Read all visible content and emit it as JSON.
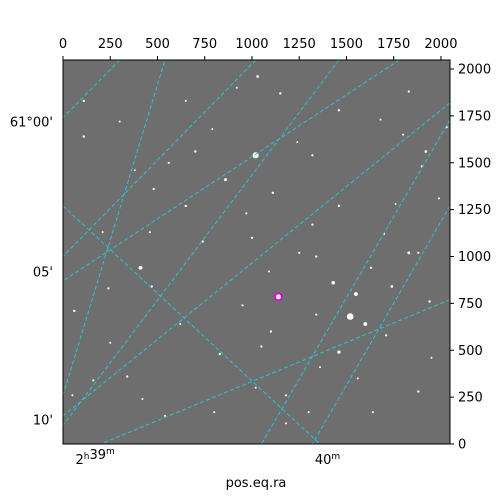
{
  "chart_data": {
    "type": "scatter",
    "title": "",
    "xlabel": "pos.eq.ra",
    "ylabel": "",
    "pixel_axes": {
      "x_range": [
        0,
        2048
      ],
      "y_range": [
        0,
        2048
      ],
      "x_ticks": [
        0,
        250,
        500,
        750,
        1000,
        1250,
        1500,
        1750,
        2000
      ],
      "y_ticks": [
        0,
        250,
        500,
        750,
        1000,
        1250,
        1500,
        1750,
        2000
      ]
    },
    "world_ticks": {
      "ra": [
        {
          "label_base": "2",
          "label_sup1": "h",
          "label_mid": "39",
          "label_sup2": "m",
          "x": 170
        },
        {
          "label_base": "",
          "label_sup1": "",
          "label_mid": "40",
          "label_sup2": "m",
          "x": 1400
        }
      ],
      "dec": [
        {
          "label": "61°00'",
          "y": 1720
        },
        {
          "label": "05'",
          "y": 920
        },
        {
          "label": "10'",
          "y": 130
        }
      ]
    },
    "grid": {
      "on": true,
      "color": "#27c5d5",
      "lines": [
        [
          [
            300,
            2048
          ],
          [
            0,
            1740
          ]
        ],
        [
          [
            1020,
            2048
          ],
          [
            0,
            1000
          ]
        ],
        [
          [
            1460,
            2048
          ],
          [
            0,
            100
          ]
        ],
        [
          [
            1780,
            2048
          ],
          [
            0,
            870
          ]
        ],
        [
          [
            2048,
            1820
          ],
          [
            0,
            150
          ]
        ],
        [
          [
            2048,
            1730
          ],
          [
            1050,
            0
          ]
        ],
        [
          [
            2048,
            770
          ],
          [
            200,
            0
          ]
        ],
        [
          [
            2048,
            1270
          ],
          [
            1320,
            0
          ]
        ],
        [
          [
            0,
            1270
          ],
          [
            1360,
            0
          ]
        ],
        [
          [
            0,
            260
          ],
          [
            540,
            2048
          ]
        ]
      ]
    },
    "image": {
      "background": "#6e6e6e",
      "star_color": "#ffffff"
    },
    "marker": {
      "x": 1140,
      "y": 785,
      "color": "#e000e0"
    },
    "stars": [
      [
        1020,
        1540,
        5.5
      ],
      [
        1520,
        680,
        6
      ],
      [
        410,
        940,
        3.5
      ],
      [
        1600,
        640,
        3.5
      ],
      [
        1550,
        800,
        3.5
      ],
      [
        1430,
        860,
        3.2
      ],
      [
        1460,
        490,
        3
      ],
      [
        1830,
        1020,
        2.6
      ],
      [
        1920,
        1560,
        2.4
      ],
      [
        1740,
        840,
        2.4
      ],
      [
        2030,
        1690,
        2.2
      ],
      [
        860,
        1410,
        2.6
      ],
      [
        110,
        1830,
        2.2
      ],
      [
        60,
        710,
        2.2
      ],
      [
        110,
        1640,
        2.2
      ],
      [
        560,
        1500,
        2
      ],
      [
        1150,
        1870,
        2.2
      ],
      [
        1460,
        1780,
        2.2
      ],
      [
        1830,
        1880,
        2
      ],
      [
        1030,
        1960,
        2.4
      ],
      [
        1900,
        1480,
        2.2
      ],
      [
        1050,
        520,
        2
      ],
      [
        1320,
        1540,
        2
      ],
      [
        1110,
        1340,
        2.2
      ],
      [
        700,
        1560,
        2.2
      ],
      [
        1340,
        1000,
        2
      ],
      [
        650,
        1270,
        2.2
      ],
      [
        470,
        840,
        2
      ],
      [
        830,
        480,
        2.2
      ],
      [
        340,
        360,
        2
      ],
      [
        1180,
        260,
        2
      ],
      [
        1710,
        580,
        2
      ],
      [
        1940,
        760,
        2.2
      ],
      [
        1880,
        280,
        2
      ],
      [
        1460,
        1270,
        2
      ],
      [
        950,
        740,
        2
      ],
      [
        1250,
        1020,
        2
      ],
      [
        1320,
        1170,
        2
      ],
      [
        1880,
        1020,
        2
      ],
      [
        1630,
        940,
        2
      ],
      [
        240,
        830,
        2
      ],
      [
        160,
        340,
        2
      ],
      [
        480,
        1360,
        2
      ],
      [
        740,
        1080,
        2
      ],
      [
        1000,
        1100,
        2
      ],
      [
        1100,
        600,
        2
      ],
      [
        1360,
        410,
        1.8
      ],
      [
        1560,
        350,
        1.8
      ],
      [
        1990,
        1310,
        1.8
      ],
      [
        1680,
        1730,
        1.8
      ],
      [
        1240,
        1610,
        1.8
      ],
      [
        790,
        1680,
        1.8
      ],
      [
        380,
        1460,
        1.8
      ],
      [
        210,
        1130,
        1.8
      ],
      [
        460,
        1130,
        1.8
      ],
      [
        620,
        640,
        1.8
      ],
      [
        250,
        540,
        1.8
      ],
      [
        540,
        150,
        1.8
      ],
      [
        800,
        170,
        1.8
      ],
      [
        1020,
        300,
        1.8
      ],
      [
        1300,
        170,
        1.8
      ],
      [
        1640,
        170,
        1.8
      ],
      [
        1950,
        460,
        1.8
      ],
      [
        1760,
        1280,
        1.8
      ],
      [
        1090,
        920,
        1.8
      ],
      [
        1340,
        690,
        1.8
      ],
      [
        970,
        1230,
        1.8
      ],
      [
        650,
        1830,
        1.8
      ],
      [
        920,
        1900,
        1.8
      ],
      [
        1700,
        1120,
        1.8
      ],
      [
        1180,
        110,
        1.8
      ],
      [
        420,
        240,
        1.8
      ],
      [
        50,
        260,
        1.8
      ],
      [
        1800,
        1650,
        1.8
      ],
      [
        300,
        1720,
        1.8
      ]
    ]
  }
}
